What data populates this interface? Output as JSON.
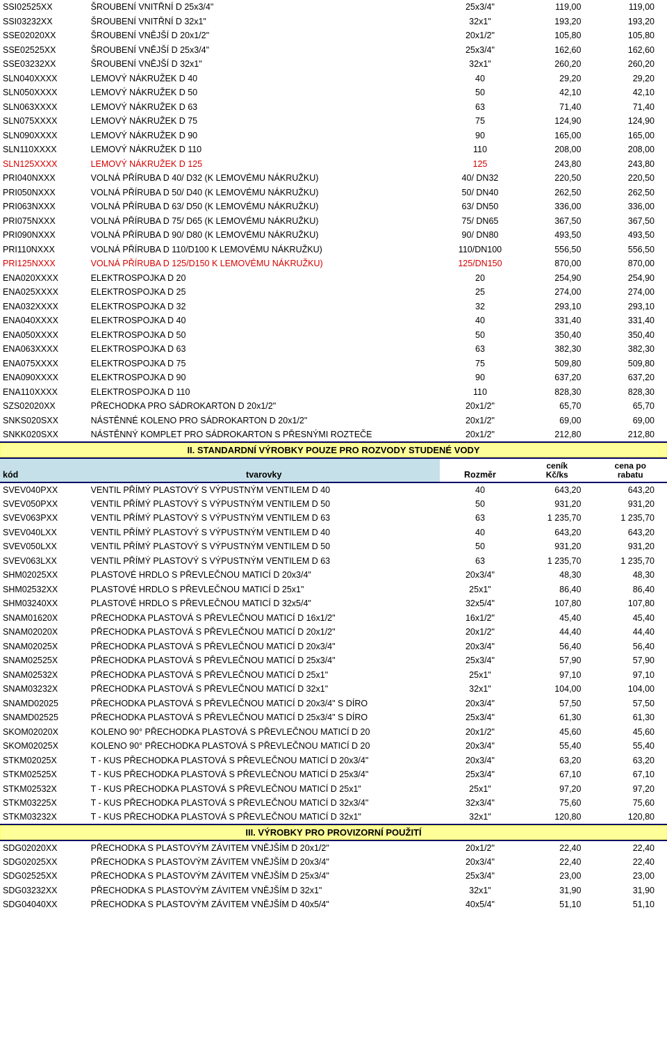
{
  "table1": {
    "rows": [
      {
        "code": "SSI02525XX",
        "desc": "ŠROUBENÍ VNITŘNÍ D 25x3/4\"",
        "size": "25x3/4\"",
        "p1": "119,00",
        "p2": "119,00",
        "red": false
      },
      {
        "code": "SSI03232XX",
        "desc": "ŠROUBENÍ VNITŘNÍ D 32x1\"",
        "size": "32x1\"",
        "p1": "193,20",
        "p2": "193,20",
        "red": false
      },
      {
        "code": "SSE02020XX",
        "desc": "ŠROUBENÍ VNĚJŠÍ D 20x1/2\"",
        "size": "20x1/2\"",
        "p1": "105,80",
        "p2": "105,80",
        "red": false
      },
      {
        "code": "SSE02525XX",
        "desc": "ŠROUBENÍ VNĚJŠÍ D 25x3/4\"",
        "size": "25x3/4\"",
        "p1": "162,60",
        "p2": "162,60",
        "red": false
      },
      {
        "code": "SSE03232XX",
        "desc": "ŠROUBENÍ VNĚJŠÍ D 32x1\"",
        "size": "32x1\"",
        "p1": "260,20",
        "p2": "260,20",
        "red": false
      },
      {
        "code": "SLN040XXXX",
        "desc": "LEMOVÝ NÁKRUŽEK D 40",
        "size": "40",
        "p1": "29,20",
        "p2": "29,20",
        "red": false
      },
      {
        "code": "SLN050XXXX",
        "desc": "LEMOVÝ NÁKRUŽEK D 50",
        "size": "50",
        "p1": "42,10",
        "p2": "42,10",
        "red": false
      },
      {
        "code": "SLN063XXXX",
        "desc": "LEMOVÝ NÁKRUŽEK D 63",
        "size": "63",
        "p1": "71,40",
        "p2": "71,40",
        "red": false
      },
      {
        "code": "SLN075XXXX",
        "desc": "LEMOVÝ NÁKRUŽEK D 75",
        "size": "75",
        "p1": "124,90",
        "p2": "124,90",
        "red": false
      },
      {
        "code": "SLN090XXXX",
        "desc": "LEMOVÝ NÁKRUŽEK D 90",
        "size": "90",
        "p1": "165,00",
        "p2": "165,00",
        "red": false
      },
      {
        "code": "SLN110XXXX",
        "desc": "LEMOVÝ NÁKRUŽEK D 110",
        "size": "110",
        "p1": "208,00",
        "p2": "208,00",
        "red": false
      },
      {
        "code": "SLN125XXXX",
        "desc": "LEMOVÝ NÁKRUŽEK D 125",
        "size": "125",
        "p1": "243,80",
        "p2": "243,80",
        "red": true
      },
      {
        "code": "PRI040NXXX",
        "desc": "VOLNÁ PŘÍRUBA D 40/ D32 (K LEMOVÉMU NÁKRUŽKU)",
        "size": "40/ DN32",
        "p1": "220,50",
        "p2": "220,50",
        "red": false
      },
      {
        "code": "PRI050NXXX",
        "desc": "VOLNÁ PŘÍRUBA D 50/ D40 (K LEMOVÉMU NÁKRUŽKU)",
        "size": "50/ DN40",
        "p1": "262,50",
        "p2": "262,50",
        "red": false
      },
      {
        "code": "PRI063NXXX",
        "desc": "VOLNÁ PŘÍRUBA D 63/ D50 (K LEMOVÉMU NÁKRUŽKU)",
        "size": "63/ DN50",
        "p1": "336,00",
        "p2": "336,00",
        "red": false
      },
      {
        "code": "PRI075NXXX",
        "desc": "VOLNÁ PŘÍRUBA D 75/ D65 (K LEMOVÉMU NÁKRUŽKU)",
        "size": "75/ DN65",
        "p1": "367,50",
        "p2": "367,50",
        "red": false
      },
      {
        "code": "PRI090NXXX",
        "desc": "VOLNÁ PŘÍRUBA D 90/ D80 (K LEMOVÉMU NÁKRUŽKU)",
        "size": "90/ DN80",
        "p1": "493,50",
        "p2": "493,50",
        "red": false
      },
      {
        "code": "PRI110NXXX",
        "desc": "VOLNÁ PŘÍRUBA D 110/D100 K LEMOVÉMU NÁKRUŽKU)",
        "size": "110/DN100",
        "p1": "556,50",
        "p2": "556,50",
        "red": false
      },
      {
        "code": "PRI125NXXX",
        "desc": "VOLNÁ PŘÍRUBA D 125/D150 K LEMOVÉMU NÁKRUŽKU)",
        "size": "125/DN150",
        "p1": "870,00",
        "p2": "870,00",
        "red": true
      },
      {
        "code": "ENA020XXXX",
        "desc": "ELEKTROSPOJKA D 20",
        "size": "20",
        "p1": "254,90",
        "p2": "254,90",
        "red": false
      },
      {
        "code": "ENA025XXXX",
        "desc": "ELEKTROSPOJKA D 25",
        "size": "25",
        "p1": "274,00",
        "p2": "274,00",
        "red": false
      },
      {
        "code": "ENA032XXXX",
        "desc": "ELEKTROSPOJKA D 32",
        "size": "32",
        "p1": "293,10",
        "p2": "293,10",
        "red": false
      },
      {
        "code": "ENA040XXXX",
        "desc": "ELEKTROSPOJKA D 40",
        "size": "40",
        "p1": "331,40",
        "p2": "331,40",
        "red": false
      },
      {
        "code": "ENA050XXXX",
        "desc": "ELEKTROSPOJKA D 50",
        "size": "50",
        "p1": "350,40",
        "p2": "350,40",
        "red": false
      },
      {
        "code": "ENA063XXXX",
        "desc": "ELEKTROSPOJKA D 63",
        "size": "63",
        "p1": "382,30",
        "p2": "382,30",
        "red": false
      },
      {
        "code": "ENA075XXXX",
        "desc": "ELEKTROSPOJKA D 75",
        "size": "75",
        "p1": "509,80",
        "p2": "509,80",
        "red": false
      },
      {
        "code": "ENA090XXXX",
        "desc": "ELEKTROSPOJKA D 90",
        "size": "90",
        "p1": "637,20",
        "p2": "637,20",
        "red": false
      },
      {
        "code": "ENA110XXXX",
        "desc": "ELEKTROSPOJKA D 110",
        "size": "110",
        "p1": "828,30",
        "p2": "828,30",
        "red": false
      },
      {
        "code": "SZS02020XX",
        "desc": "PŘECHODKA PRO SÁDROKARTON D 20x1/2\"",
        "size": "20x1/2\"",
        "p1": "65,70",
        "p2": "65,70",
        "red": false
      },
      {
        "code": "SNKS020SXX",
        "desc": "NÁSTĚNNÉ KOLENO PRO SÁDROKARTON D 20x1/2\"",
        "size": "20x1/2\"",
        "p1": "69,00",
        "p2": "69,00",
        "red": false
      },
      {
        "code": "SNKK020SXX",
        "desc": "NÁSTĚNNÝ KOMPLET PRO SÁDROKARTON S PŘESNÝMI ROZTEČE",
        "size": "20x1/2\"",
        "p1": "212,80",
        "p2": "212,80",
        "red": false
      }
    ]
  },
  "section2": {
    "title": "II. STANDARDNÍ VÝROBKY POUZE PRO ROZVODY STUDENÉ VODY",
    "headers": {
      "code": "kód",
      "desc": "tvarovky",
      "size": "Rozměr",
      "price_top": "ceník",
      "price_bot": "Kč/ks",
      "disc_top": "cena po",
      "disc_bot": "rabatu"
    }
  },
  "table2": {
    "rows": [
      {
        "code": "SVEV040PXX",
        "desc": "VENTIL PŘÍMÝ PLASTOVÝ S VÝPUSTNÝM VENTILEM D 40",
        "size": "40",
        "p1": "643,20",
        "p2": "643,20",
        "red": false
      },
      {
        "code": "SVEV050PXX",
        "desc": "VENTIL PŘÍMÝ PLASTOVÝ S VÝPUSTNÝM VENTILEM D 50",
        "size": "50",
        "p1": "931,20",
        "p2": "931,20",
        "red": false
      },
      {
        "code": "SVEV063PXX",
        "desc": "VENTIL PŘÍMÝ PLASTOVÝ S VÝPUSTNÝM VENTILEM D 63",
        "size": "63",
        "p1": "1 235,70",
        "p2": "1 235,70",
        "red": false
      },
      {
        "code": "SVEV040LXX",
        "desc": "VENTIL PŘÍMÝ PLASTOVÝ S VÝPUSTNÝM VENTILEM D 40",
        "size": "40",
        "p1": "643,20",
        "p2": "643,20",
        "red": false
      },
      {
        "code": "SVEV050LXX",
        "desc": "VENTIL PŘÍMÝ PLASTOVÝ S VÝPUSTNÝM VENTILEM D 50",
        "size": "50",
        "p1": "931,20",
        "p2": "931,20",
        "red": false
      },
      {
        "code": "SVEV063LXX",
        "desc": "VENTIL PŘÍMÝ PLASTOVÝ S VÝPUSTNÝM VENTILEM D 63",
        "size": "63",
        "p1": "1 235,70",
        "p2": "1 235,70",
        "red": false
      },
      {
        "code": "SHM02025XX",
        "desc": "PLASTOVÉ HRDLO S PŘEVLEČNOU MATICÍ D 20x3/4\"",
        "size": "20x3/4\"",
        "p1": "48,30",
        "p2": "48,30",
        "red": false
      },
      {
        "code": "SHM02532XX",
        "desc": "PLASTOVÉ HRDLO S PŘEVLEČNOU MATICÍ D 25x1\"",
        "size": "25x1\"",
        "p1": "86,40",
        "p2": "86,40",
        "red": false
      },
      {
        "code": "SHM03240XX",
        "desc": "PLASTOVÉ HRDLO S PŘEVLEČNOU MATICÍ D 32x5/4\"",
        "size": "32x5/4\"",
        "p1": "107,80",
        "p2": "107,80",
        "red": false
      },
      {
        "code": "SNAM01620X",
        "desc": "PŘECHODKA PLASTOVÁ S PŘEVLEČNOU MATICÍ D 16x1/2\"",
        "size": "16x1/2\"",
        "p1": "45,40",
        "p2": "45,40",
        "red": false
      },
      {
        "code": "SNAM02020X",
        "desc": "PŘECHODKA PLASTOVÁ S PŘEVLEČNOU MATICÍ D 20x1/2\"",
        "size": "20x1/2\"",
        "p1": "44,40",
        "p2": "44,40",
        "red": false
      },
      {
        "code": "SNAM02025X",
        "desc": "PŘECHODKA PLASTOVÁ S PŘEVLEČNOU MATICÍ D 20x3/4\"",
        "size": "20x3/4\"",
        "p1": "56,40",
        "p2": "56,40",
        "red": false
      },
      {
        "code": "SNAM02525X",
        "desc": "PŘECHODKA PLASTOVÁ S PŘEVLEČNOU MATICÍ D 25x3/4\"",
        "size": "25x3/4\"",
        "p1": "57,90",
        "p2": "57,90",
        "red": false
      },
      {
        "code": "SNAM02532X",
        "desc": "PŘECHODKA PLASTOVÁ S PŘEVLEČNOU MATICÍ D 25x1\"",
        "size": "25x1\"",
        "p1": "97,10",
        "p2": "97,10",
        "red": false
      },
      {
        "code": "SNAM03232X",
        "desc": "PŘECHODKA PLASTOVÁ S PŘEVLEČNOU MATICÍ D 32x1\"",
        "size": "32x1\"",
        "p1": "104,00",
        "p2": "104,00",
        "red": false
      },
      {
        "code": "SNAMD02025",
        "desc": "PŘECHODKA PLASTOVÁ S PŘEVLEČNOU MATICÍ D 20x3/4\" S DÍRO",
        "size": "20x3/4\"",
        "p1": "57,50",
        "p2": "57,50",
        "red": false
      },
      {
        "code": "SNAMD02525",
        "desc": "PŘECHODKA PLASTOVÁ S PŘEVLEČNOU MATICÍ D 25x3/4\" S DÍRO",
        "size": "25x3/4\"",
        "p1": "61,30",
        "p2": "61,30",
        "red": false
      },
      {
        "code": "SKOM02020X",
        "desc": "KOLENO 90° PŘECHODKA PLASTOVÁ S PŘEVLEČNOU MATICÍ D 20",
        "size": "20x1/2\"",
        "p1": "45,60",
        "p2": "45,60",
        "red": false
      },
      {
        "code": "SKOM02025X",
        "desc": "KOLENO 90° PŘECHODKA PLASTOVÁ S PŘEVLEČNOU MATICÍ D 20",
        "size": "20x3/4\"",
        "p1": "55,40",
        "p2": "55,40",
        "red": false
      },
      {
        "code": "STKM02025X",
        "desc": "T - KUS PŘECHODKA PLASTOVÁ S PŘEVLEČNOU MATICÍ D 20x3/4\"",
        "size": "20x3/4\"",
        "p1": "63,20",
        "p2": "63,20",
        "red": false
      },
      {
        "code": "STKM02525X",
        "desc": "T - KUS PŘECHODKA PLASTOVÁ S PŘEVLEČNOU MATICÍ D 25x3/4\"",
        "size": "25x3/4\"",
        "p1": "67,10",
        "p2": "67,10",
        "red": false
      },
      {
        "code": "STKM02532X",
        "desc": "T - KUS PŘECHODKA PLASTOVÁ S PŘEVLEČNOU MATICÍ D 25x1\"",
        "size": "25x1\"",
        "p1": "97,20",
        "p2": "97,20",
        "red": false
      },
      {
        "code": "STKM03225X",
        "desc": "T - KUS PŘECHODKA PLASTOVÁ S PŘEVLEČNOU MATICÍ D 32x3/4\"",
        "size": "32x3/4\"",
        "p1": "75,60",
        "p2": "75,60",
        "red": false
      },
      {
        "code": "STKM03232X",
        "desc": "T - KUS PŘECHODKA PLASTOVÁ S PŘEVLEČNOU MATICÍ D 32x1\"",
        "size": "32x1\"",
        "p1": "120,80",
        "p2": "120,80",
        "red": false
      }
    ]
  },
  "section3": {
    "title": "III. VÝROBKY PRO PROVIZORNÍ POUŽITÍ"
  },
  "table3": {
    "rows": [
      {
        "code": "SDG02020XX",
        "desc": "PŘECHODKA S PLASTOVÝM ZÁVITEM VNĚJŠÍM D 20x1/2\"",
        "size": "20x1/2\"",
        "p1": "22,40",
        "p2": "22,40",
        "red": false
      },
      {
        "code": "SDG02025XX",
        "desc": "PŘECHODKA S PLASTOVÝM ZÁVITEM VNĚJŠÍM D 20x3/4\"",
        "size": "20x3/4\"",
        "p1": "22,40",
        "p2": "22,40",
        "red": false
      },
      {
        "code": "SDG02525XX",
        "desc": "PŘECHODKA S PLASTOVÝM ZÁVITEM VNĚJŠÍM D 25x3/4\"",
        "size": "25x3/4\"",
        "p1": "23,00",
        "p2": "23,00",
        "red": false
      },
      {
        "code": "SDG03232XX",
        "desc": "PŘECHODKA S PLASTOVÝM ZÁVITEM VNĚJŠÍM D 32x1\"",
        "size": "32x1\"",
        "p1": "31,90",
        "p2": "31,90",
        "red": false
      },
      {
        "code": "SDG04040XX",
        "desc": "PŘECHODKA S PLASTOVÝM ZÁVITEM VNĚJŠÍM D 40x5/4\"",
        "size": "40x5/4\"",
        "p1": "51,10",
        "p2": "51,10",
        "red": false
      }
    ]
  }
}
